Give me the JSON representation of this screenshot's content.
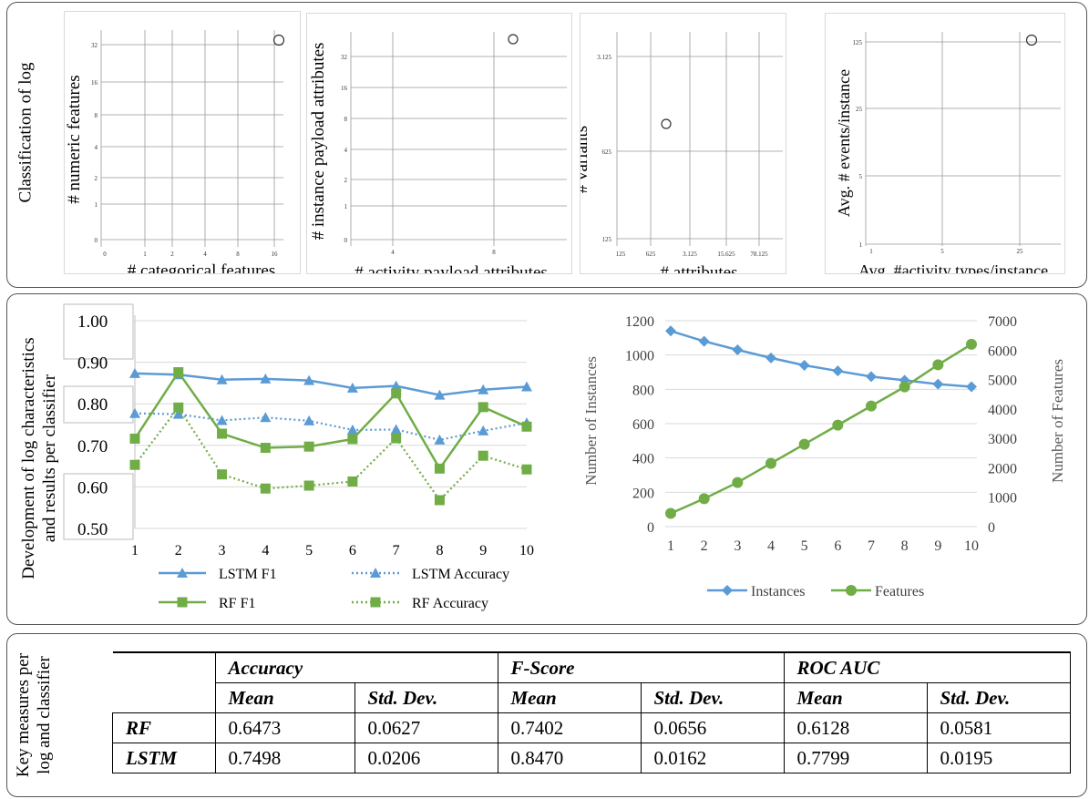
{
  "row_labels": {
    "row1": "Classification of log",
    "row2": [
      "Development of log characteristics",
      "and results per classifier"
    ],
    "row3": [
      "Key measures per",
      "log and classifier"
    ]
  },
  "scatter_plots": [
    {
      "xlabel": "# categorical features",
      "ylabel": "# numeric features",
      "x_ticks": [
        "0",
        "1",
        "2",
        "4",
        "8",
        "16"
      ],
      "y_ticks": [
        "0",
        "1",
        "2",
        "4",
        "8",
        "16",
        "32"
      ],
      "point": {
        "x": "~24",
        "y": "~38"
      }
    },
    {
      "xlabel": "# activity payload attributes",
      "ylabel": "# instance payload attributes",
      "x_ticks": [
        "4",
        "8"
      ],
      "y_ticks": [
        "0",
        "1",
        "2",
        "4",
        "8",
        "16",
        "32"
      ],
      "point": {
        "x": "~9",
        "y": "~40"
      }
    },
    {
      "xlabel": "# attributes",
      "ylabel": "# variants",
      "x_ticks": [
        "125",
        "625",
        "3.125",
        "15.625",
        "78.125"
      ],
      "y_ticks": [
        "125",
        "625",
        "3.125"
      ],
      "point": {
        "x": "~1000",
        "y": "~1000"
      }
    },
    {
      "xlabel": "Avg. #activity types/instance",
      "ylabel": "Avg. # events/instance",
      "x_ticks": [
        "1",
        "5",
        "25"
      ],
      "y_ticks": [
        "1",
        "5",
        "25",
        "125"
      ],
      "point": {
        "x": "~30",
        "y": "~125"
      }
    }
  ],
  "chart_data": [
    {
      "type": "line",
      "title": "",
      "x": [
        1,
        2,
        3,
        4,
        5,
        6,
        7,
        8,
        9,
        10
      ],
      "ylim": [
        0.5,
        1.0
      ],
      "y_ticks": [
        "0.50",
        "0.60",
        "0.70",
        "0.80",
        "0.90",
        "1.00"
      ],
      "series": [
        {
          "name": "LSTM F1",
          "color": "#5b9bd5",
          "style": "solid",
          "marker": "triangle",
          "values": [
            0.873,
            0.87,
            0.858,
            0.86,
            0.856,
            0.838,
            0.843,
            0.821,
            0.834,
            0.841
          ]
        },
        {
          "name": "LSTM Accuracy",
          "color": "#5b9bd5",
          "style": "dotted",
          "marker": "triangle",
          "values": [
            0.777,
            0.775,
            0.76,
            0.767,
            0.759,
            0.737,
            0.738,
            0.713,
            0.735,
            0.754
          ]
        },
        {
          "name": "RF F1",
          "color": "#70ad47",
          "style": "solid",
          "marker": "square",
          "values": [
            0.716,
            0.876,
            0.728,
            0.694,
            0.697,
            0.715,
            0.825,
            0.644,
            0.792,
            0.745
          ]
        },
        {
          "name": "RF Accuracy",
          "color": "#70ad47",
          "style": "dotted",
          "marker": "square",
          "values": [
            0.653,
            0.791,
            0.63,
            0.596,
            0.603,
            0.613,
            0.717,
            0.568,
            0.675,
            0.642
          ]
        }
      ]
    },
    {
      "type": "line",
      "title": "",
      "x": [
        1,
        2,
        3,
        4,
        5,
        6,
        7,
        8,
        9,
        10
      ],
      "ylabel": "Number of Instances",
      "ylabel_right": "Number of Features",
      "ylim": [
        0,
        1200
      ],
      "ylim_right": [
        0,
        7000
      ],
      "y_ticks": [
        "0",
        "200",
        "400",
        "600",
        "800",
        "1000",
        "1200"
      ],
      "y_ticks_right": [
        "0",
        "1000",
        "2000",
        "3000",
        "4000",
        "5000",
        "6000",
        "7000"
      ],
      "series": [
        {
          "name": "Instances",
          "color": "#5b9bd5",
          "marker": "diamond",
          "axis": "left",
          "values": [
            1140,
            1080,
            1030,
            983,
            940,
            907,
            874,
            853,
            830,
            815
          ]
        },
        {
          "name": "Features",
          "color": "#70ad47",
          "marker": "circle",
          "axis": "right",
          "values": [
            450,
            950,
            1500,
            2150,
            2800,
            3450,
            4100,
            4750,
            5500,
            6200
          ]
        }
      ]
    }
  ],
  "table": {
    "groups": [
      "Accuracy",
      "F-Score",
      "ROC AUC"
    ],
    "subheaders": [
      "Mean",
      "Std. Dev.",
      "Mean",
      "Std. Dev.",
      "Mean",
      "Std. Dev."
    ],
    "rows": [
      {
        "label": "RF",
        "cells": [
          "0.6473",
          "0.0627",
          "0.7402",
          "0.0656",
          "0.6128",
          "0.0581"
        ]
      },
      {
        "label": "LSTM",
        "cells": [
          "0.7498",
          "0.0206",
          "0.8470",
          "0.0162",
          "0.7799",
          "0.0195"
        ]
      }
    ]
  }
}
